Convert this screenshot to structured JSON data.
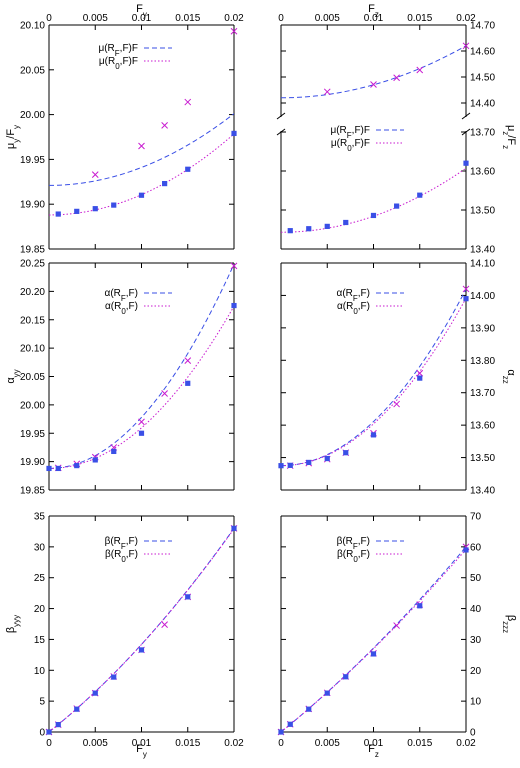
{
  "colors": {
    "series1": "#3a4fe6",
    "series2": "#c81ad0",
    "axis": "#000000"
  },
  "chart_data": [
    {
      "id": "mu_y",
      "type": "line",
      "top_axis_label": "F",
      "top_axis_sub": "y",
      "ylabel_main": "μ",
      "ylabel_sub": "y",
      "ylabel_tail": "/F",
      "ylabel_tail_sub": "y",
      "y_tick_side": "left",
      "xlim": [
        0,
        0.02
      ],
      "ylim": [
        19.85,
        20.1
      ],
      "x_ticks": [
        "0",
        "0.005",
        "0.01",
        "0.015",
        "0.02"
      ],
      "y_ticks": [
        "19.85",
        "19.90",
        "19.95",
        "20.00",
        "20.05",
        "20.10"
      ],
      "legend": [
        {
          "main": "μ(R",
          "sub": "F",
          "tail": ",F)F"
        },
        {
          "main": "μ(R",
          "sub": "0",
          "tail": ",F)F"
        }
      ],
      "series": [
        {
          "curve": [
            19.921,
            0,
            200
          ],
          "points": [
            [
              0.005,
              19.933
            ],
            [
              0.0125,
              19.988
            ],
            [
              0.01,
              19.965
            ],
            [
              0.015,
              20.014
            ],
            [
              0.02,
              20.093
            ]
          ]
        },
        {
          "curve": [
            19.888,
            0,
            226
          ],
          "points": [
            [
              0.001,
              19.889
            ],
            [
              0.003,
              19.892
            ],
            [
              0.005,
              19.895
            ],
            [
              0.007,
              19.899
            ],
            [
              0.01,
              19.91
            ],
            [
              0.0125,
              19.923
            ],
            [
              0.015,
              19.939
            ],
            [
              0.02,
              19.979
            ]
          ]
        }
      ]
    },
    {
      "id": "mu_z",
      "type": "line",
      "top_axis_label": "F",
      "top_axis_sub": "z",
      "ylabel_main": "μ",
      "ylabel_sub": "z",
      "ylabel_tail": "/F",
      "ylabel_tail_sub": "z",
      "y_tick_side": "right",
      "broken_axis": true,
      "xlim": [
        0,
        0.02
      ],
      "ylim_lower": [
        13.4,
        13.7
      ],
      "ylim_upper": [
        14.35,
        14.7
      ],
      "x_ticks": [
        "0",
        "0.005",
        "0.01",
        "0.015",
        "0.02"
      ],
      "y_ticks_lower": [
        "13.40",
        "13.50",
        "13.60",
        "13.70"
      ],
      "y_ticks_upper": [
        "14.40",
        "14.50",
        "14.60",
        "14.70"
      ],
      "legend": [
        {
          "main": "μ(R",
          "sub": "F",
          "tail": ",F)F"
        },
        {
          "main": "μ(R",
          "sub": "0",
          "tail": ",F)F"
        }
      ],
      "series": [
        {
          "curve": [
            14.42,
            0,
            500
          ],
          "points": [
            [
              0.005,
              14.443
            ],
            [
              0.01,
              14.471
            ],
            [
              0.0125,
              14.497
            ],
            [
              0.015,
              14.527
            ],
            [
              0.02,
              14.62
            ]
          ]
        },
        {
          "curve": [
            13.443,
            0,
            410
          ],
          "points": [
            [
              0.001,
              13.447
            ],
            [
              0.003,
              13.452
            ],
            [
              0.005,
              13.458
            ],
            [
              0.007,
              13.468
            ],
            [
              0.01,
              13.486
            ],
            [
              0.0125,
              13.51
            ],
            [
              0.015,
              13.538
            ],
            [
              0.02,
              13.62
            ]
          ]
        }
      ]
    },
    {
      "id": "alpha_yy",
      "type": "line",
      "ylabel_main": "α",
      "ylabel_sub": "yy",
      "y_tick_side": "left",
      "xlim": [
        0,
        0.02
      ],
      "ylim": [
        19.85,
        20.25
      ],
      "y_ticks": [
        "19.85",
        "19.90",
        "19.95",
        "20.00",
        "20.05",
        "20.10",
        "20.15",
        "20.20",
        "20.25"
      ],
      "legend": [
        {
          "main": "α(R",
          "sub": "F",
          "tail": ",F)"
        },
        {
          "main": "α(R",
          "sub": "0",
          "tail": ",F)"
        }
      ],
      "series": [
        {
          "curve": [
            19.888,
            0,
            900
          ],
          "points": [
            [
              0.001,
              19.889
            ],
            [
              0.003,
              19.896
            ],
            [
              0.005,
              19.908
            ],
            [
              0.007,
              19.925
            ],
            [
              0.01,
              19.97
            ],
            [
              0.0125,
              20.02
            ],
            [
              0.015,
              20.078
            ],
            [
              0.02,
              20.245
            ]
          ]
        },
        {
          "curve": [
            19.888,
            0,
            715
          ],
          "points": [
            [
              0,
              19.888
            ],
            [
              0.001,
              19.888
            ],
            [
              0.003,
              19.893
            ],
            [
              0.005,
              19.903
            ],
            [
              0.007,
              19.918
            ],
            [
              0.01,
              19.95
            ],
            [
              0.015,
              20.038
            ],
            [
              0.02,
              20.175
            ]
          ]
        }
      ]
    },
    {
      "id": "alpha_zz",
      "type": "line",
      "ylabel_main": "α",
      "ylabel_sub": "zz",
      "y_tick_side": "right",
      "xlim": [
        0,
        0.02
      ],
      "ylim": [
        13.4,
        14.1
      ],
      "y_ticks": [
        "13.40",
        "13.50",
        "13.60",
        "13.70",
        "13.80",
        "13.90",
        "14.00",
        "14.10"
      ],
      "legend": [
        {
          "main": "α(R",
          "sub": "F",
          "tail": ",F)"
        },
        {
          "main": "α(R",
          "sub": "0",
          "tail": ",F)"
        }
      ],
      "series": [
        {
          "curve": [
            13.475,
            0,
            1360
          ],
          "points": [
            [
              0.001,
              13.475
            ],
            [
              0.003,
              13.483
            ],
            [
              0.005,
              13.495
            ],
            [
              0.007,
              13.515
            ],
            [
              0.01,
              13.575
            ],
            [
              0.0125,
              13.665
            ],
            [
              0.015,
              13.76
            ],
            [
              0.02,
              14.02
            ]
          ]
        },
        {
          "curve": [
            13.475,
            0,
            1290
          ],
          "points": [
            [
              0,
              13.475
            ],
            [
              0.001,
              13.476
            ],
            [
              0.003,
              13.485
            ],
            [
              0.005,
              13.497
            ],
            [
              0.007,
              13.515
            ],
            [
              0.01,
              13.57
            ],
            [
              0.015,
              13.745
            ],
            [
              0.02,
              13.99
            ]
          ]
        }
      ]
    },
    {
      "id": "beta_yyy",
      "type": "line",
      "xlabel_main": "F",
      "xlabel_sub": "y",
      "ylabel_main": "β",
      "ylabel_sub": "yyy",
      "y_tick_side": "left",
      "xlim": [
        0,
        0.02
      ],
      "ylim": [
        0,
        35
      ],
      "x_ticks": [
        "0",
        "0.005",
        "0.01",
        "0.015",
        "0.02"
      ],
      "y_ticks": [
        "0",
        "5",
        "10",
        "15",
        "20",
        "25",
        "30",
        "35"
      ],
      "legend": [
        {
          "main": "β(R",
          "sub": "F",
          "tail": ",F)"
        },
        {
          "main": "β(R",
          "sub": "0",
          "tail": ",F)"
        }
      ],
      "series": [
        {
          "curve": [
            0,
            1190,
            23000
          ],
          "points": [
            [
              0,
              0
            ],
            [
              0.001,
              1.2
            ],
            [
              0.003,
              3.8
            ],
            [
              0.005,
              6.3
            ],
            [
              0.007,
              9.0
            ],
            [
              0.01,
              13.3
            ],
            [
              0.0125,
              17.4
            ],
            [
              0.015,
              21.9
            ],
            [
              0.02,
              33.0
            ]
          ]
        },
        {
          "curve": [
            0,
            1190,
            22800
          ],
          "points": [
            [
              0,
              0
            ],
            [
              0.001,
              1.2
            ],
            [
              0.003,
              3.7
            ],
            [
              0.005,
              6.3
            ],
            [
              0.007,
              8.9
            ],
            [
              0.01,
              13.3
            ],
            [
              0.015,
              21.9
            ],
            [
              0.02,
              33.0
            ]
          ]
        }
      ]
    },
    {
      "id": "beta_zzz",
      "type": "line",
      "xlabel_main": "F",
      "xlabel_sub": "z",
      "ylabel_main": "β",
      "ylabel_sub": "zzz",
      "y_tick_side": "right",
      "xlim": [
        0,
        0.02
      ],
      "ylim": [
        0,
        70
      ],
      "x_ticks": [
        "0",
        "0.005",
        "0.01",
        "0.015",
        "0.02"
      ],
      "y_ticks": [
        "0",
        "10",
        "20",
        "30",
        "40",
        "50",
        "60",
        "70"
      ],
      "legend": [
        {
          "main": "β(R",
          "sub": "F",
          "tail": ",F)"
        },
        {
          "main": "β(R",
          "sub": "0",
          "tail": ",F)"
        }
      ],
      "series": [
        {
          "curve": [
            0,
            2440,
            28000
          ],
          "points": [
            [
              0,
              0
            ],
            [
              0.001,
              2.5
            ],
            [
              0.003,
              7.5
            ],
            [
              0.005,
              12.7
            ],
            [
              0.007,
              18.0
            ],
            [
              0.01,
              25.5
            ],
            [
              0.0125,
              34.5
            ],
            [
              0.015,
              41.3
            ],
            [
              0.02,
              60.0
            ]
          ]
        },
        {
          "curve": [
            0,
            2440,
            26000
          ],
          "points": [
            [
              0,
              0
            ],
            [
              0.001,
              2.5
            ],
            [
              0.003,
              7.4
            ],
            [
              0.005,
              12.6
            ],
            [
              0.007,
              17.9
            ],
            [
              0.01,
              25.3
            ],
            [
              0.015,
              40.9
            ],
            [
              0.02,
              59.0
            ]
          ]
        }
      ]
    }
  ]
}
